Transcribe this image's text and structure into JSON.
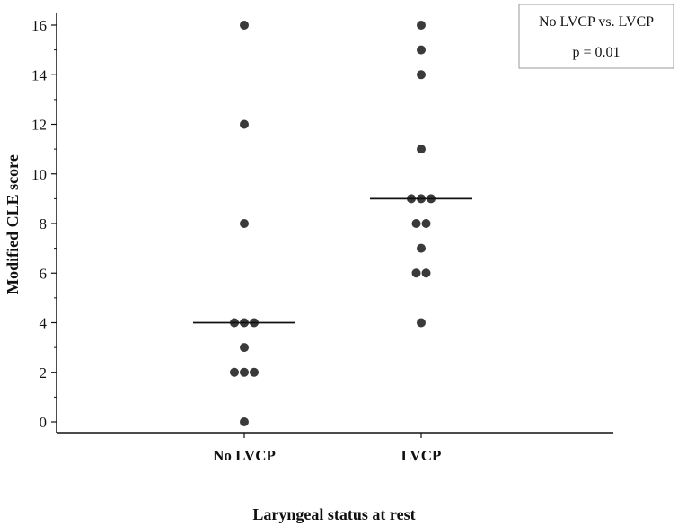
{
  "chart_data": {
    "type": "scatter",
    "title": "",
    "xlabel": "Laryngeal status at rest",
    "ylabel": "Modified CLE score",
    "ylim": [
      0,
      16
    ],
    "yticks": [
      0,
      2,
      4,
      6,
      8,
      10,
      12,
      14,
      16
    ],
    "categories": [
      "No LVCP",
      "LVCP"
    ],
    "grid": false,
    "legend_placement": "top-right",
    "annotation": {
      "line1": "No LVCP vs. LVCP",
      "line2": "p = 0.01"
    },
    "marker_color": "#3a3a3a",
    "series": [
      {
        "category": "No LVCP",
        "values": [
          16,
          12,
          8,
          4,
          4,
          4,
          3,
          2,
          2,
          2,
          0
        ],
        "median": 4
      },
      {
        "category": "LVCP",
        "values": [
          16,
          15,
          14,
          11,
          9,
          9,
          9,
          8,
          8,
          7,
          6,
          6,
          4
        ],
        "median": 9
      }
    ]
  }
}
